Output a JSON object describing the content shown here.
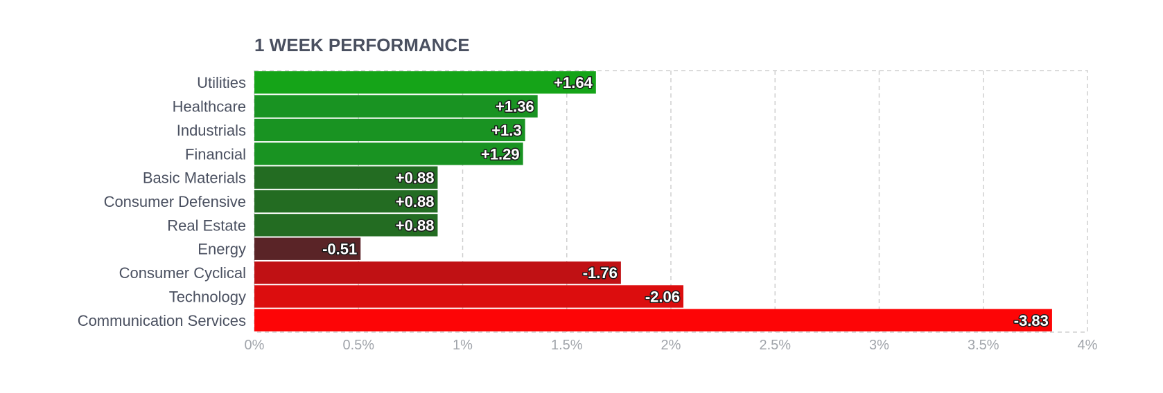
{
  "chart_data": {
    "type": "bar",
    "orientation": "horizontal",
    "title": "1 WEEK PERFORMANCE",
    "categories": [
      "Utilities",
      "Healthcare",
      "Industrials",
      "Financial",
      "Basic Materials",
      "Consumer Defensive",
      "Real Estate",
      "Energy",
      "Consumer Cyclical",
      "Technology",
      "Communication Services"
    ],
    "values": [
      1.64,
      1.36,
      1.3,
      1.29,
      0.88,
      0.88,
      0.88,
      -0.51,
      -1.76,
      -2.06,
      -3.83
    ],
    "value_labels": [
      "+1.64",
      "+1.36",
      "+1.3",
      "+1.29",
      "+0.88",
      "+0.88",
      "+0.88",
      "-0.51",
      "-1.76",
      "-2.06",
      "-3.83"
    ],
    "bar_colors": [
      "#15a418",
      "#199322",
      "#199322",
      "#199322",
      "#236c22",
      "#236c22",
      "#236c22",
      "#5a2427",
      "#c01114",
      "#dc0d0e",
      "#fd0506"
    ],
    "xlim": [
      0,
      4
    ],
    "x_ticks": [
      "0%",
      "0.5%",
      "1%",
      "1.5%",
      "2%",
      "2.5%",
      "3%",
      "3.5%",
      "4%"
    ],
    "bar_length_basis": "absolute value",
    "grid": true,
    "legend": "none"
  }
}
